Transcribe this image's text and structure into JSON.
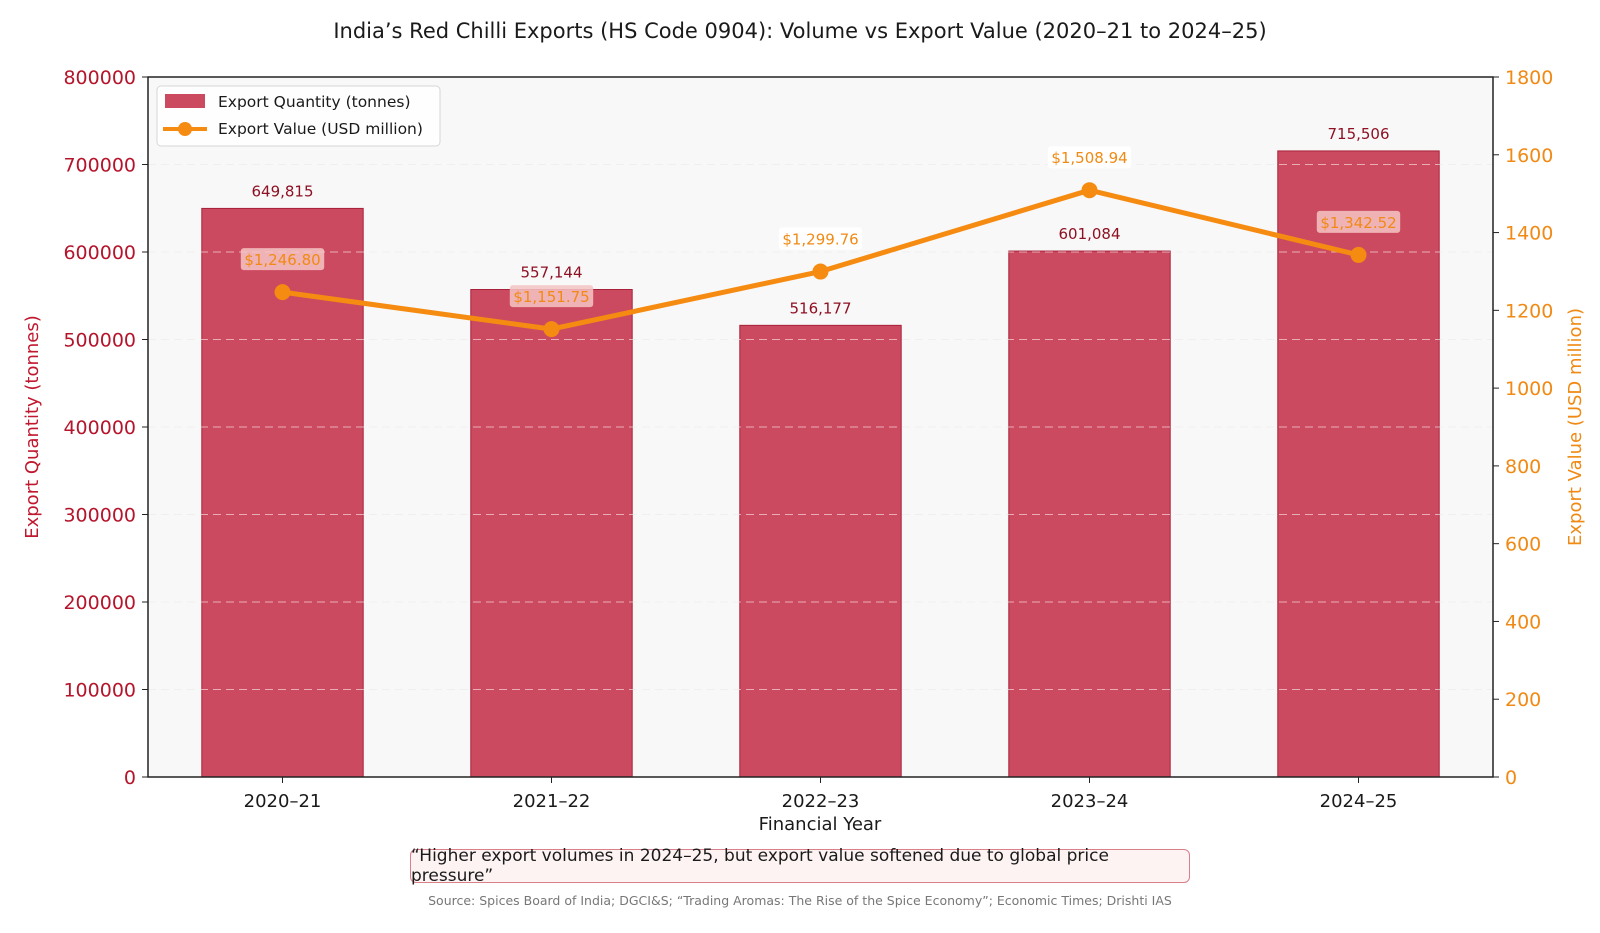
{
  "chart_data": {
    "type": "bar+line",
    "title": "India’s Red Chilli Exports (HS Code 0904): Volume vs Export Value (2020–21 to 2024–25)",
    "xlabel": "Financial Year",
    "ylabel_left": "Export Quantity (tonnes)",
    "ylabel_right": "Export Value (USD million)",
    "categories": [
      "2020–21",
      "2021–22",
      "2022–23",
      "2023–24",
      "2024–25"
    ],
    "ylim_left": [
      0,
      800000
    ],
    "ylim_right": [
      0,
      1800
    ],
    "yticks_left": [
      "0",
      "100000",
      "200000",
      "300000",
      "400000",
      "500000",
      "600000",
      "700000",
      "800000"
    ],
    "yticks_right": [
      "0",
      "200",
      "400",
      "600",
      "800",
      "1000",
      "1200",
      "1400",
      "1600",
      "1800"
    ],
    "grid": "horizontal dashed",
    "legend_position": "top-left",
    "series": [
      {
        "name": "Export Quantity (tonnes)",
        "type": "bar",
        "axis": "left",
        "color": "#cc4a5f",
        "values": [
          649815,
          557144,
          516177,
          601084,
          715506
        ],
        "labels": [
          "649,815",
          "557,144",
          "516,177",
          "601,084",
          "715,506"
        ]
      },
      {
        "name": "Export Value (USD million)",
        "type": "line",
        "axis": "right",
        "color": "#f68b12",
        "values": [
          1246.8,
          1151.75,
          1299.76,
          1508.94,
          1342.52
        ],
        "labels": [
          "$1,246.80",
          "$1,151.75",
          "$1,299.76",
          "$1,508.94",
          "$1,342.52"
        ]
      }
    ]
  },
  "note": "“Higher export volumes in 2024–25, but export value softened due to global price pressure”",
  "source": "Source: Spices Board of India; DGCI&S; “Trading Aromas: The Rise of the Spice Economy”; Economic Times; Drishti IAS"
}
